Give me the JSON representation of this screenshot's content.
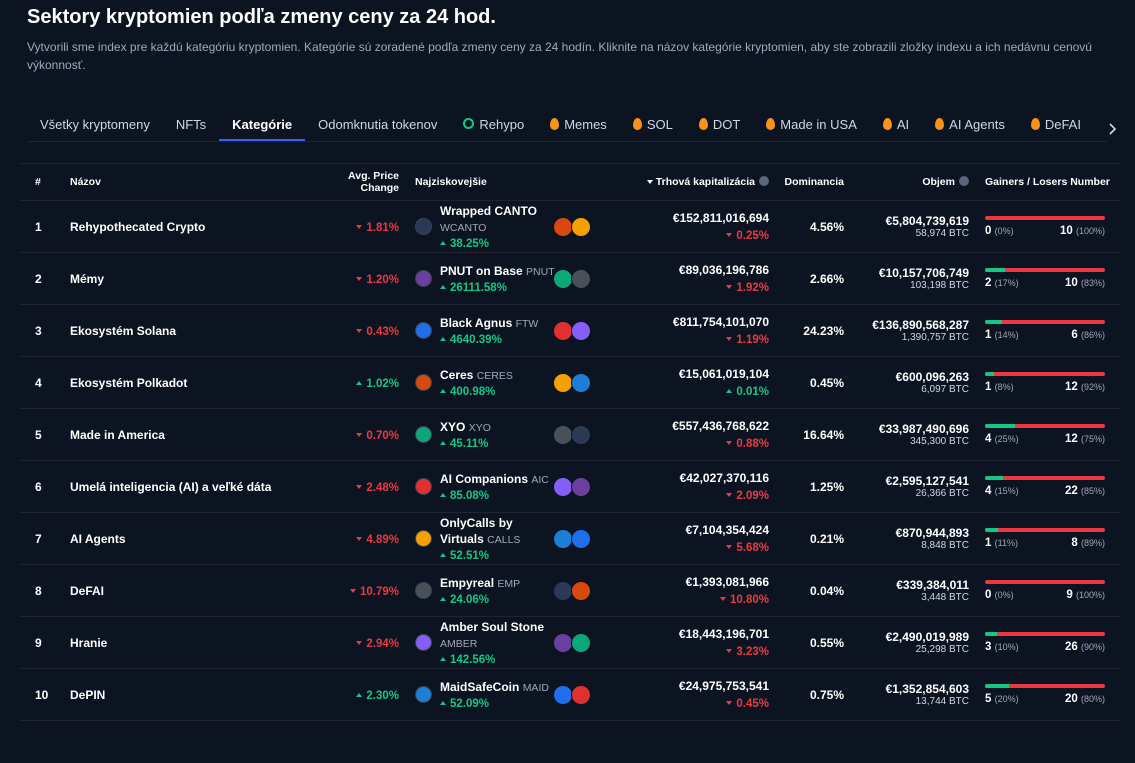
{
  "header": {
    "title": "Sektory kryptomien podľa zmeny ceny za 24 hod.",
    "description": "Vytvorili sme index pre každú kategóriu kryptomien. Kategórie sú zoradené podľa zmeny ceny za 24 hodín. Kliknite na názov kategórie kryptomien, aby ste zobrazili zložky indexu a ich nedávnu cenovú výkonnosť."
  },
  "tabs": [
    {
      "label": "Všetky kryptomeny"
    },
    {
      "label": "NFTs"
    },
    {
      "label": "Kategórie",
      "active": true
    },
    {
      "label": "Odomknutia tokenov"
    },
    {
      "label": "Rehypo",
      "icon": "recycle"
    },
    {
      "label": "Memes",
      "icon": "fire"
    },
    {
      "label": "SOL",
      "icon": "fire"
    },
    {
      "label": "DOT",
      "icon": "fire"
    },
    {
      "label": "Made in USA",
      "icon": "fire"
    },
    {
      "label": "AI",
      "icon": "fire"
    },
    {
      "label": "AI Agents",
      "icon": "fire"
    },
    {
      "label": "DeFAI",
      "icon": "fire"
    }
  ],
  "table": {
    "columns": {
      "rank": "#",
      "name": "Názov",
      "avg_change": "Avg. Price Change",
      "top": "Najziskovejšie",
      "market_cap": "Trhová kapitalizácia",
      "dominance": "Dominancia",
      "volume": "Objem",
      "gainers_losers": "Gainers / Losers Number"
    },
    "rows": [
      {
        "rank": "1",
        "name": "Rehypothecated Crypto",
        "avg_change": "1.81%",
        "avg_dir": "down",
        "top_name": "Wrapped CANTO",
        "top_symbol": "WCANTO",
        "top_change": "38.25%",
        "top_dir": "up",
        "market_cap": "€152,811,016,694",
        "mcap_change": "0.25%",
        "mcap_dir": "down",
        "dominance": "4.56%",
        "volume": "€5,804,739,619",
        "volume_btc": "58,974 BTC",
        "gainers": 0,
        "gainers_pct": "(0%)",
        "losers": 10,
        "losers_pct": "(100%)"
      },
      {
        "rank": "2",
        "name": "Mémy",
        "avg_change": "1.20%",
        "avg_dir": "down",
        "top_name": "PNUT on Base",
        "top_symbol": "PNUT",
        "top_change": "26111.58%",
        "top_dir": "up",
        "market_cap": "€89,036,196,786",
        "mcap_change": "1.92%",
        "mcap_dir": "down",
        "dominance": "2.66%",
        "volume": "€10,157,706,749",
        "volume_btc": "103,198 BTC",
        "gainers": 2,
        "gainers_pct": "(17%)",
        "losers": 10,
        "losers_pct": "(83%)"
      },
      {
        "rank": "3",
        "name": "Ekosystém Solana",
        "avg_change": "0.43%",
        "avg_dir": "down",
        "top_name": "Black Agnus",
        "top_symbol": "FTW",
        "top_change": "4640.39%",
        "top_dir": "up",
        "market_cap": "€811,754,101,070",
        "mcap_change": "1.19%",
        "mcap_dir": "down",
        "dominance": "24.23%",
        "volume": "€136,890,568,287",
        "volume_btc": "1,390,757 BTC",
        "gainers": 1,
        "gainers_pct": "(14%)",
        "losers": 6,
        "losers_pct": "(86%)"
      },
      {
        "rank": "4",
        "name": "Ekosystém Polkadot",
        "avg_change": "1.02%",
        "avg_dir": "up",
        "top_name": "Ceres",
        "top_symbol": "CERES",
        "top_change": "400.98%",
        "top_dir": "up",
        "market_cap": "€15,061,019,104",
        "mcap_change": "0.01%",
        "mcap_dir": "up",
        "dominance": "0.45%",
        "volume": "€600,096,263",
        "volume_btc": "6,097 BTC",
        "gainers": 1,
        "gainers_pct": "(8%)",
        "losers": 12,
        "losers_pct": "(92%)"
      },
      {
        "rank": "5",
        "name": "Made in America",
        "avg_change": "0.70%",
        "avg_dir": "down",
        "top_name": "XYO",
        "top_symbol": "XYO",
        "top_change": "45.11%",
        "top_dir": "up",
        "market_cap": "€557,436,768,622",
        "mcap_change": "0.88%",
        "mcap_dir": "down",
        "dominance": "16.64%",
        "volume": "€33,987,490,696",
        "volume_btc": "345,300 BTC",
        "gainers": 4,
        "gainers_pct": "(25%)",
        "losers": 12,
        "losers_pct": "(75%)"
      },
      {
        "rank": "6",
        "name": "Umelá inteligencia (AI) a veľké dáta",
        "avg_change": "2.48%",
        "avg_dir": "down",
        "top_name": "AI Companions",
        "top_symbol": "AIC",
        "top_change": "85.08%",
        "top_dir": "up",
        "market_cap": "€42,027,370,116",
        "mcap_change": "2.09%",
        "mcap_dir": "down",
        "dominance": "1.25%",
        "volume": "€2,595,127,541",
        "volume_btc": "26,366 BTC",
        "gainers": 4,
        "gainers_pct": "(15%)",
        "losers": 22,
        "losers_pct": "(85%)"
      },
      {
        "rank": "7",
        "name": "AI Agents",
        "avg_change": "4.89%",
        "avg_dir": "down",
        "top_name": "OnlyCalls by Virtuals",
        "top_symbol": "CALLS",
        "top_change": "52.51%",
        "top_dir": "up",
        "market_cap": "€7,104,354,424",
        "mcap_change": "5.68%",
        "mcap_dir": "down",
        "dominance": "0.21%",
        "volume": "€870,944,893",
        "volume_btc": "8,848 BTC",
        "gainers": 1,
        "gainers_pct": "(11%)",
        "losers": 8,
        "losers_pct": "(89%)"
      },
      {
        "rank": "8",
        "name": "DeFAI",
        "avg_change": "10.79%",
        "avg_dir": "down",
        "top_name": "Empyreal",
        "top_symbol": "EMP",
        "top_change": "24.06%",
        "top_dir": "up",
        "market_cap": "€1,393,081,966",
        "mcap_change": "10.80%",
        "mcap_dir": "down",
        "dominance": "0.04%",
        "volume": "€339,384,011",
        "volume_btc": "3,448 BTC",
        "gainers": 0,
        "gainers_pct": "(0%)",
        "losers": 9,
        "losers_pct": "(100%)"
      },
      {
        "rank": "9",
        "name": "Hranie",
        "avg_change": "2.94%",
        "avg_dir": "down",
        "top_name": "Amber Soul Stone",
        "top_symbol": "AMBER",
        "top_change": "142.56%",
        "top_dir": "up",
        "market_cap": "€18,443,196,701",
        "mcap_change": "3.23%",
        "mcap_dir": "down",
        "dominance": "0.55%",
        "volume": "€2,490,019,989",
        "volume_btc": "25,298 BTC",
        "gainers": 3,
        "gainers_pct": "(10%)",
        "losers": 26,
        "losers_pct": "(90%)"
      },
      {
        "rank": "10",
        "name": "DePIN",
        "avg_change": "2.30%",
        "avg_dir": "up",
        "top_name": "MaidSafeCoin",
        "top_symbol": "MAID",
        "top_change": "52.09%",
        "top_dir": "up",
        "market_cap": "€24,975,753,541",
        "mcap_change": "0.45%",
        "mcap_dir": "down",
        "dominance": "0.75%",
        "volume": "€1,352,854,603",
        "volume_btc": "13,744 BTC",
        "gainers": 5,
        "gainers_pct": "(20%)",
        "losers": 20,
        "losers_pct": "(80%)"
      }
    ]
  }
}
